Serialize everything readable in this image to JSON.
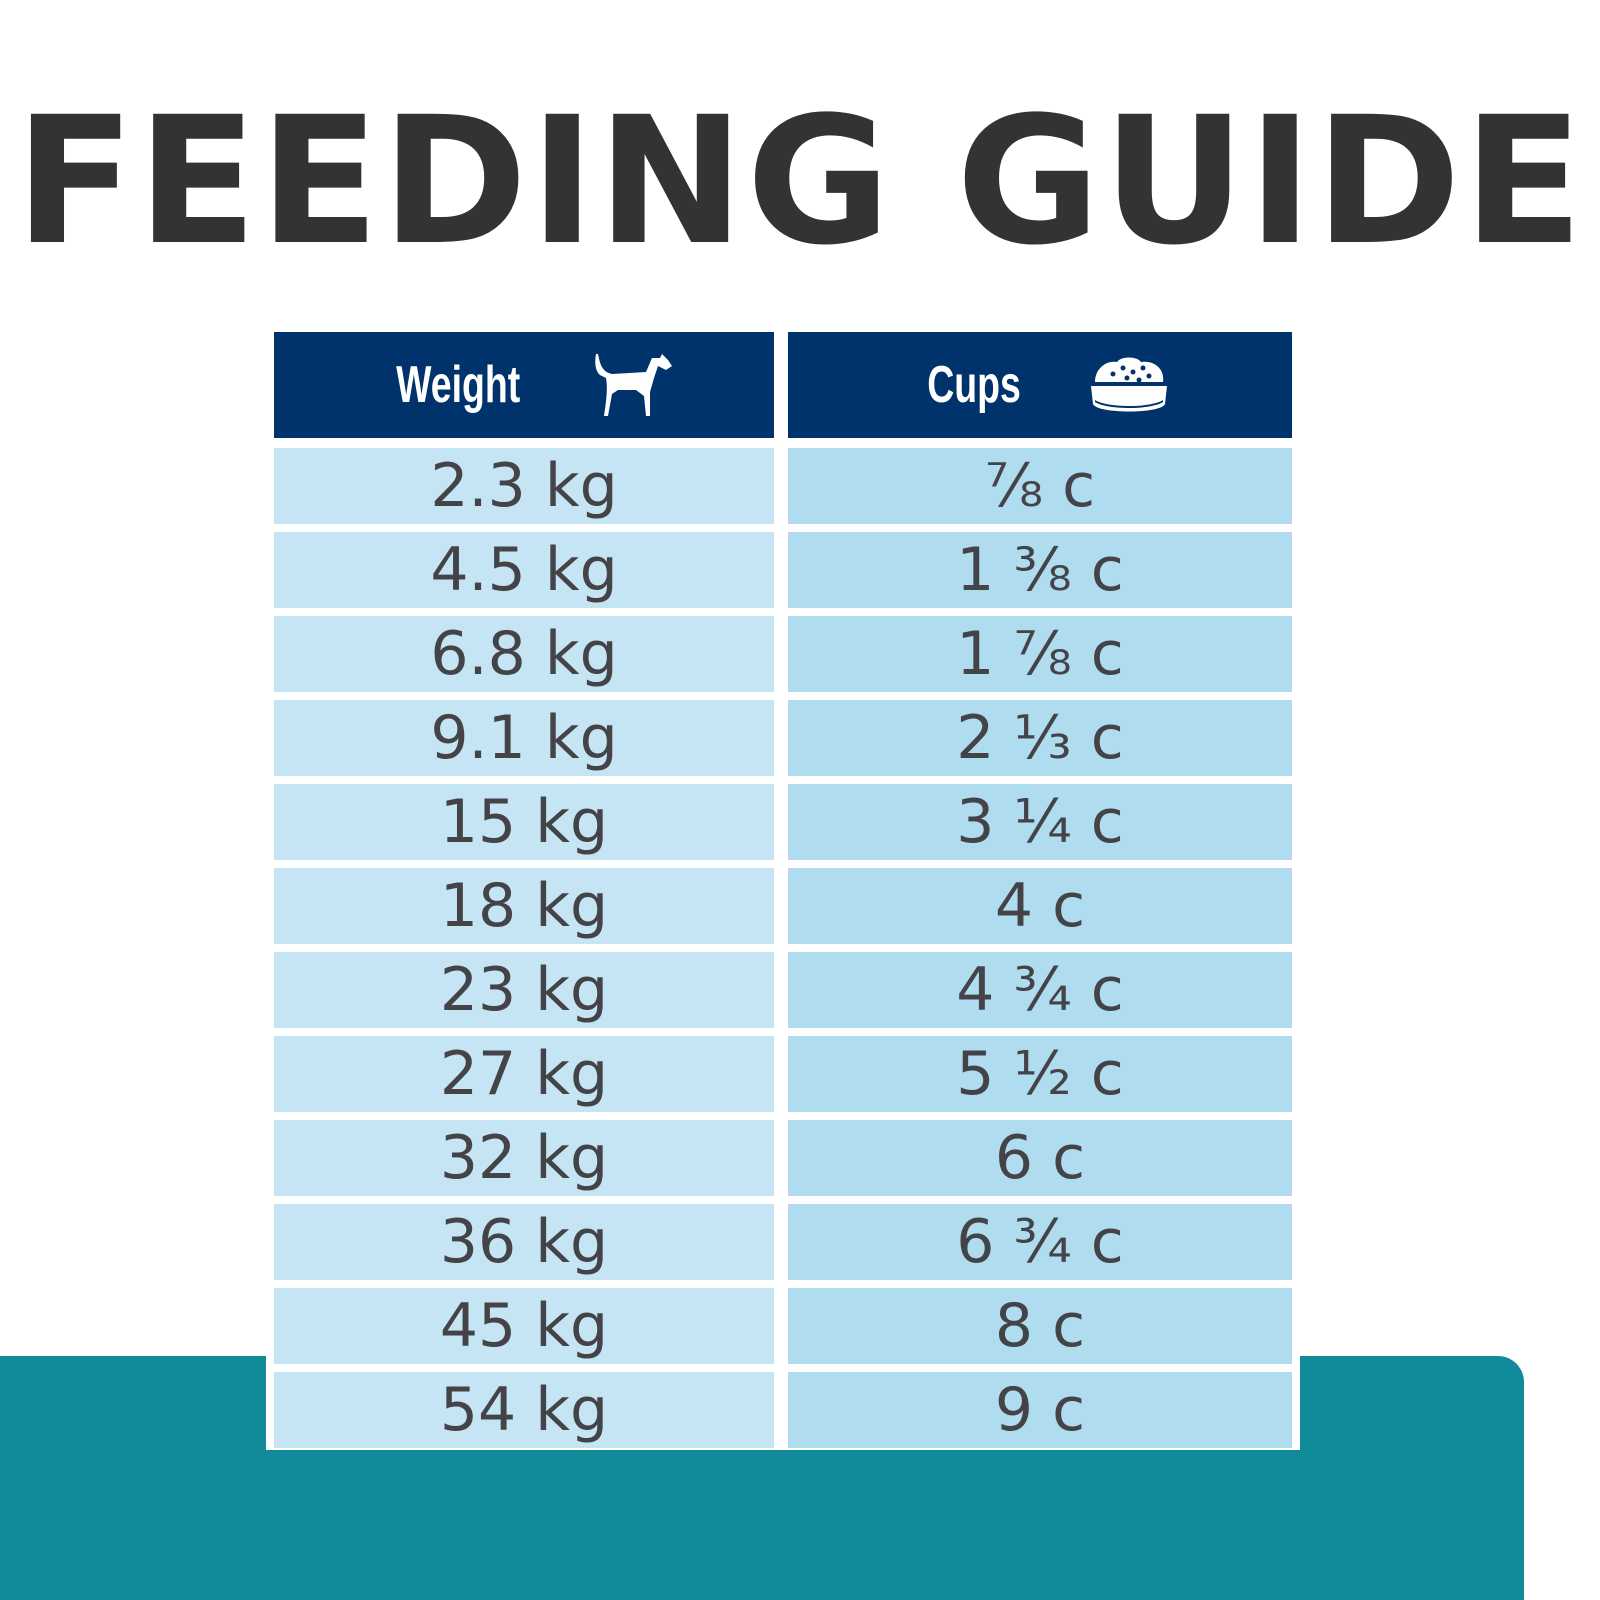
{
  "title": "FEEDING GUIDE",
  "colors": {
    "header": "#00336b",
    "weight_cell": "#c6e5f4",
    "cups_cell": "#b0dcf0",
    "band": "#118b9a",
    "text": "#444448"
  },
  "table": {
    "headers": [
      {
        "label": "Weight",
        "icon": "dog-icon"
      },
      {
        "label": "Cups",
        "icon": "food-bowl-icon"
      }
    ],
    "rows": [
      {
        "weight": "2.3 kg",
        "cups": "⅞ c"
      },
      {
        "weight": "4.5 kg",
        "cups": "1 ⅜ c"
      },
      {
        "weight": "6.8 kg",
        "cups": "1 ⅞ c"
      },
      {
        "weight": "9.1 kg",
        "cups": "2 ⅓ c"
      },
      {
        "weight": "15 kg",
        "cups": "3 ¼ c"
      },
      {
        "weight": "18 kg",
        "cups": "4 c"
      },
      {
        "weight": "23 kg",
        "cups": "4 ¾ c"
      },
      {
        "weight": "27 kg",
        "cups": "5 ½ c"
      },
      {
        "weight": "32 kg",
        "cups": "6 c"
      },
      {
        "weight": "36 kg",
        "cups": "6 ¾ c"
      },
      {
        "weight": "45 kg",
        "cups": "8 c"
      },
      {
        "weight": "54 kg",
        "cups": "9 c"
      }
    ]
  }
}
